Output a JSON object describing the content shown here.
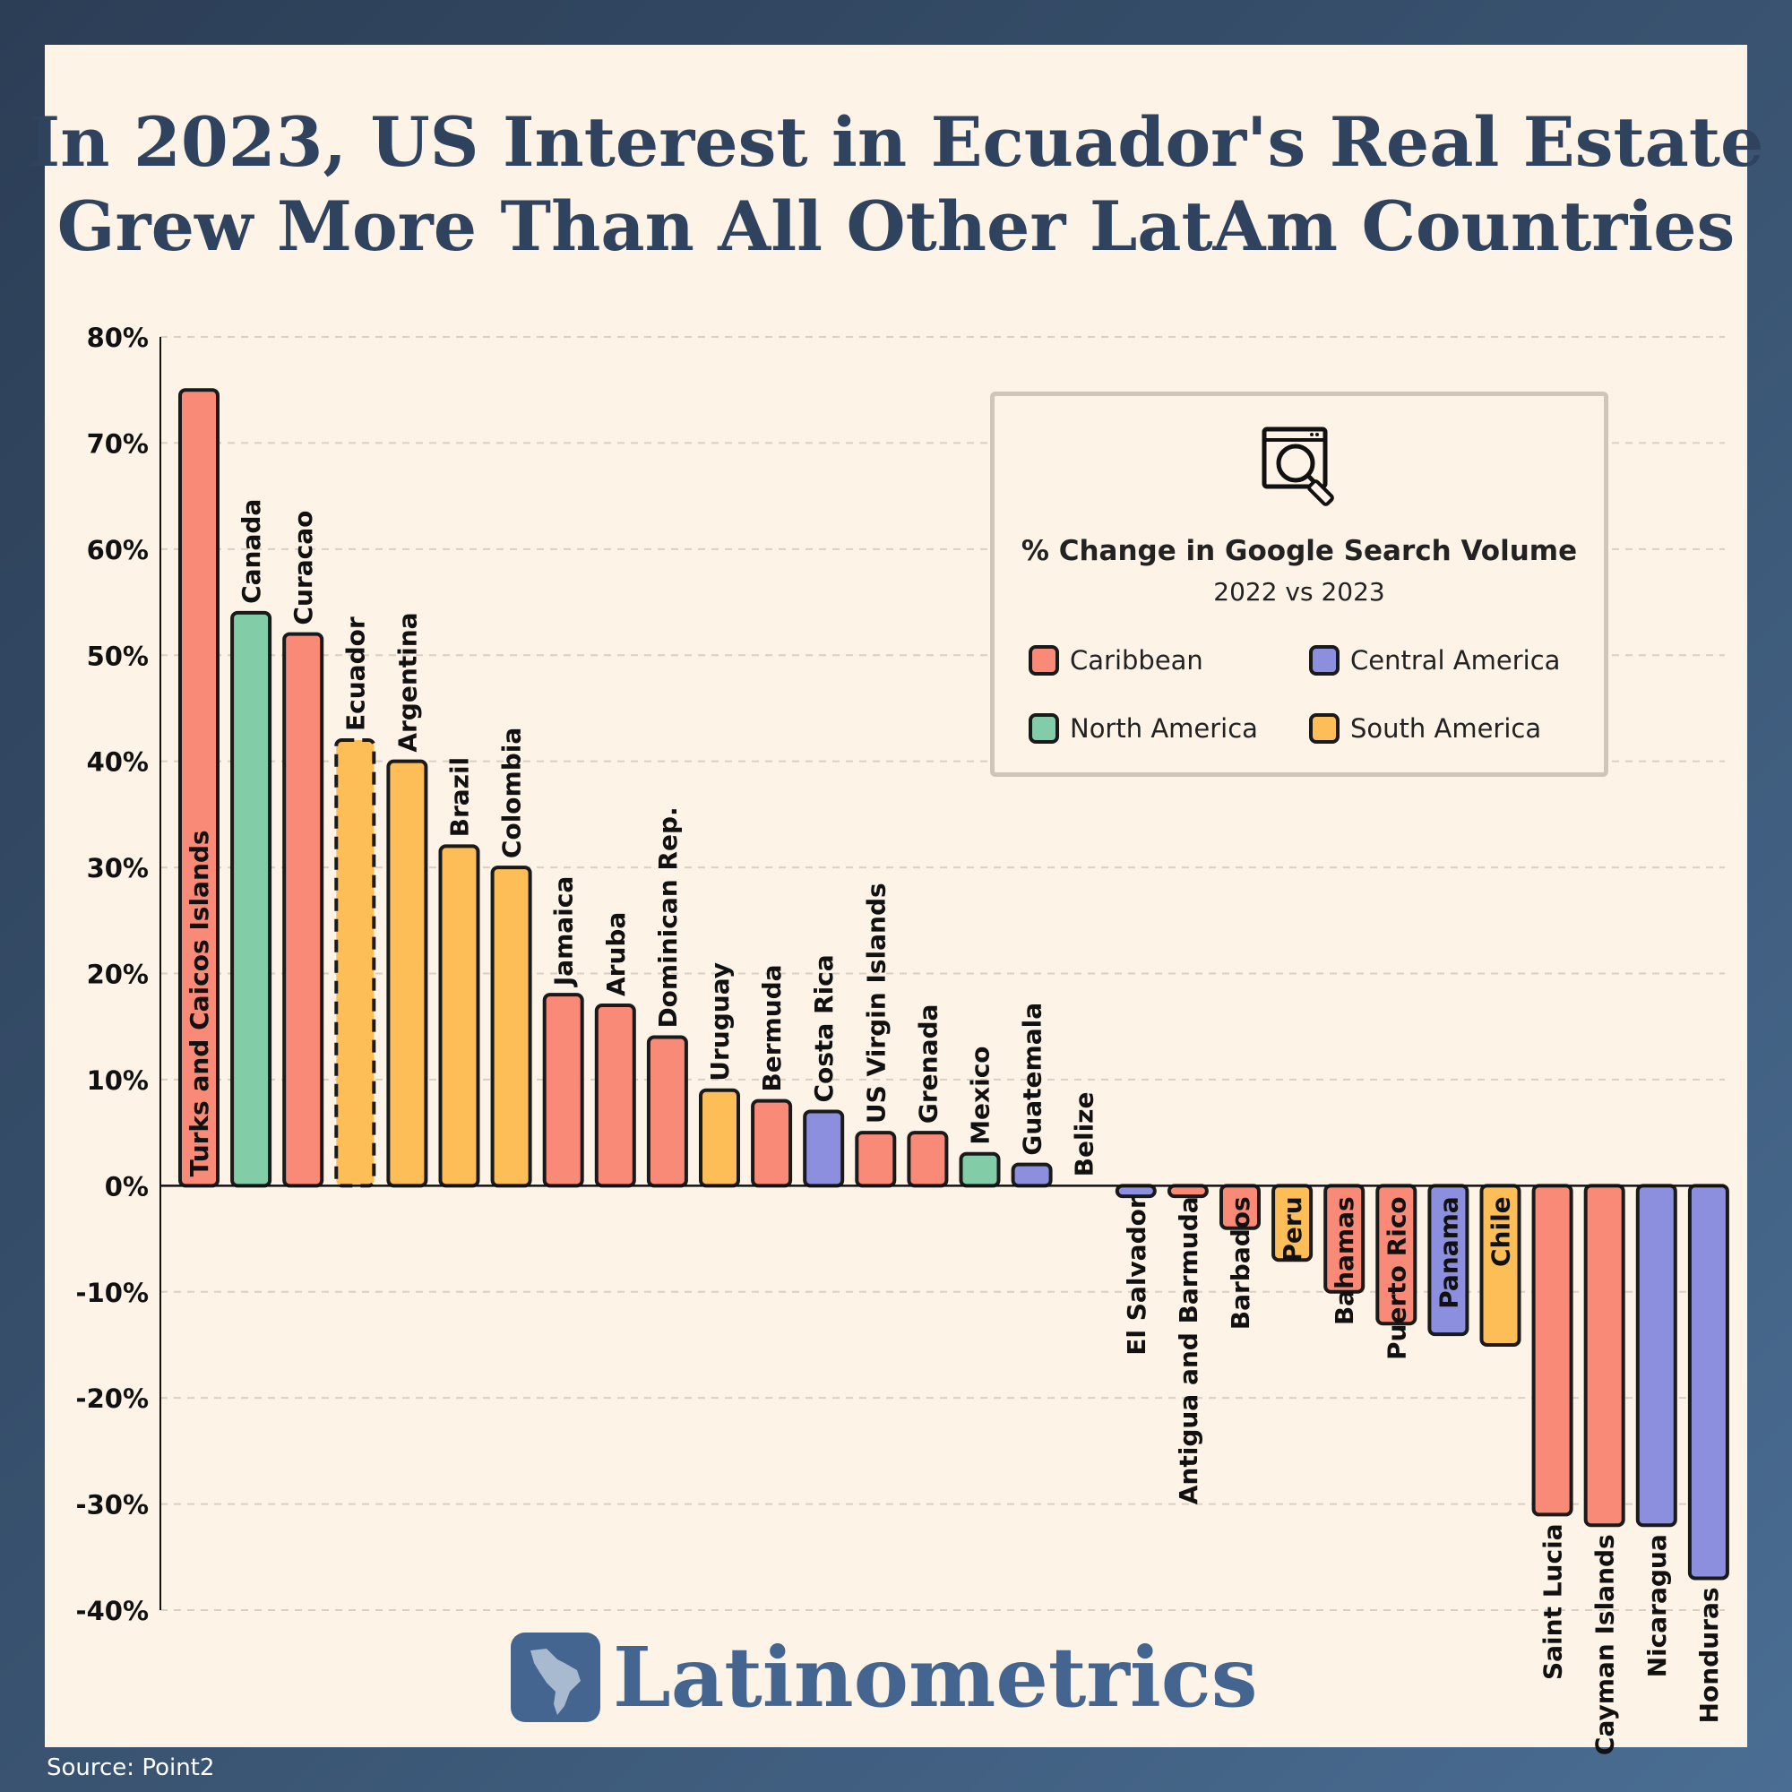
{
  "title": {
    "line1": "In 2023, US Interest in Ecuador's Real Estate",
    "line2": "Grew More Than All Other LatAm Countries"
  },
  "legend": {
    "title": "% Change in Google Search Volume",
    "subtitle": "2022 vs 2023",
    "items": [
      {
        "label": "Caribbean",
        "color": "#fa8a78"
      },
      {
        "label": "Central America",
        "color": "#8c8ede"
      },
      {
        "label": "North America",
        "color": "#82cca8"
      },
      {
        "label": "South America",
        "color": "#fdbe58"
      }
    ],
    "icon": "search-browser-icon"
  },
  "brand": {
    "name": "Latinometrics",
    "icon": "latin-america-map-icon"
  },
  "source": "Source: Point2",
  "chart_data": {
    "type": "bar",
    "ylim": [
      -40,
      80
    ],
    "yticks": [
      80,
      70,
      60,
      50,
      40,
      30,
      20,
      10,
      0,
      -10,
      -20,
      -30,
      -40
    ],
    "ytick_labels": [
      "80%",
      "70%",
      "60%",
      "50%",
      "40%",
      "30%",
      "20%",
      "10%",
      "0%",
      "-10%",
      "-20%",
      "-30%",
      "-40%"
    ],
    "grid": "horizontal-dashed",
    "highlight": "Ecuador",
    "categories": [
      "Turks and Caicos Islands",
      "Canada",
      "Curacao",
      "Ecuador",
      "Argentina",
      "Brazil",
      "Colombia",
      "Jamaica",
      "Aruba",
      "Dominican Rep.",
      "Uruguay",
      "Bermuda",
      "Costa Rica",
      "US Virgin Islands",
      "Grenada",
      "Mexico",
      "Guatemala",
      "Belize",
      "El Salvador",
      "Antigua and Barmuda",
      "Barbados",
      "Peru",
      "Bahamas",
      "Puerto Rico",
      "Panama",
      "Chile",
      "Saint Lucia",
      "Cayman Islands",
      "Nicaragua",
      "Honduras"
    ],
    "values": [
      75,
      54,
      52,
      42,
      40,
      32,
      30,
      18,
      17,
      14,
      9,
      8,
      7,
      5,
      5,
      3,
      2,
      0,
      -1,
      -1,
      -4,
      -7,
      -10,
      -13,
      -14,
      -15,
      -31,
      -32,
      -32,
      -37
    ],
    "regions": [
      "Caribbean",
      "North America",
      "Caribbean",
      "South America",
      "South America",
      "South America",
      "South America",
      "Caribbean",
      "Caribbean",
      "Caribbean",
      "South America",
      "Caribbean",
      "Central America",
      "Caribbean",
      "Caribbean",
      "North America",
      "Central America",
      "Central America",
      "Central America",
      "Caribbean",
      "Caribbean",
      "South America",
      "Caribbean",
      "Caribbean",
      "Central America",
      "South America",
      "Caribbean",
      "Caribbean",
      "Central America",
      "Central America"
    ]
  }
}
